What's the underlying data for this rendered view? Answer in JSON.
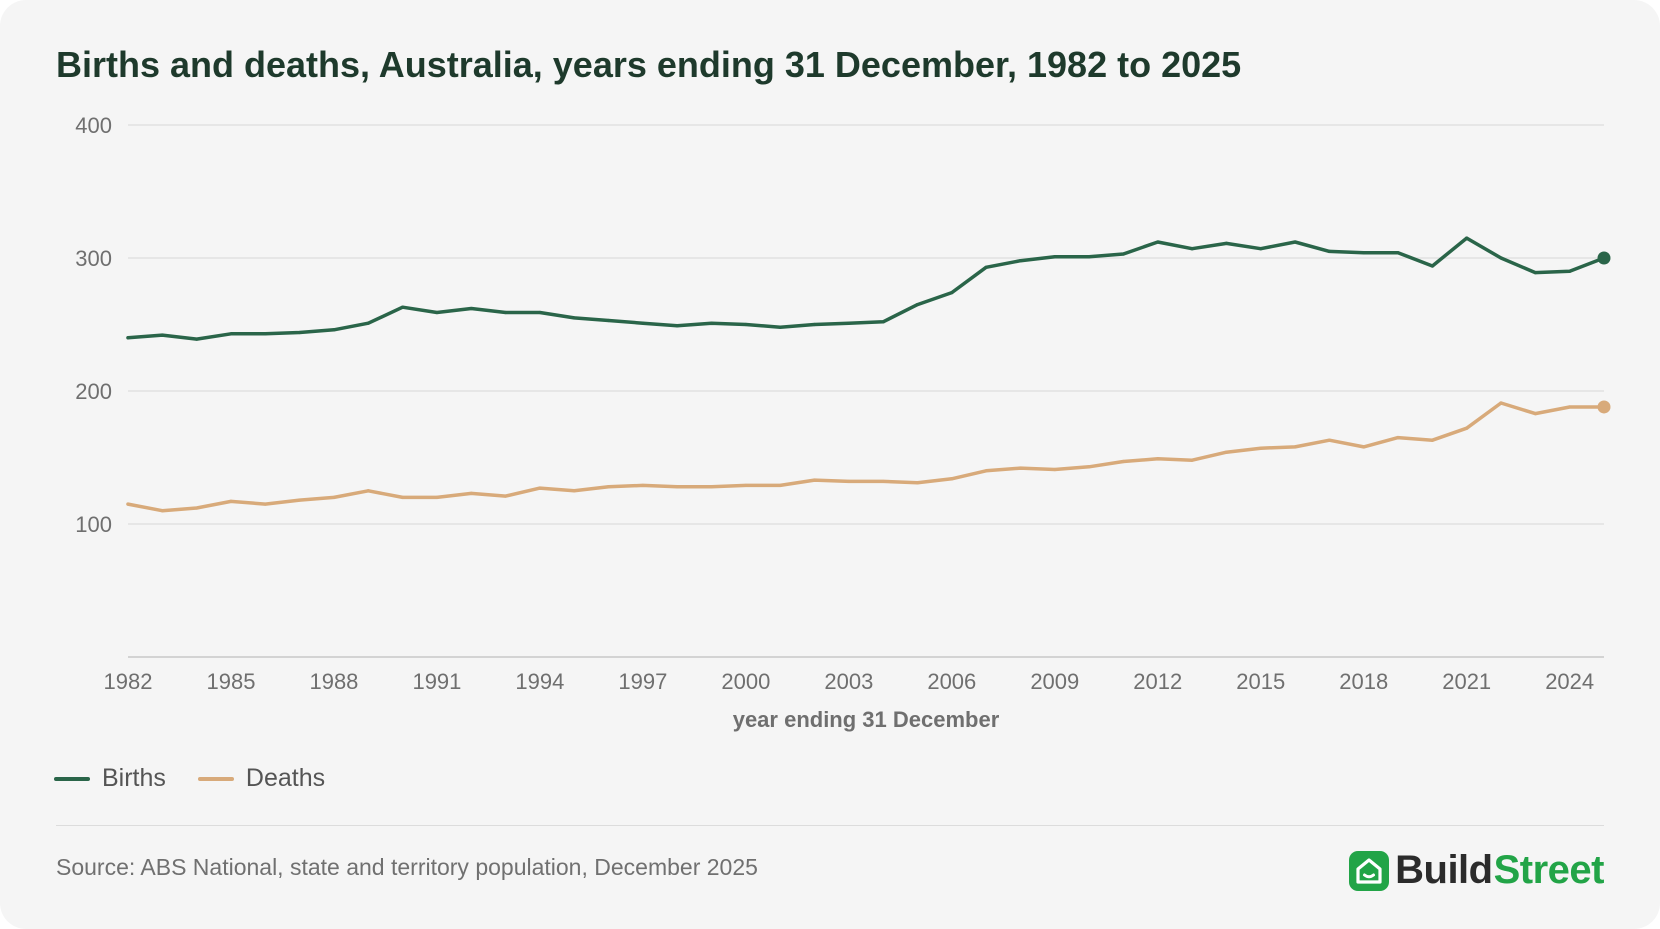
{
  "title": "Births and deaths, Australia, years ending 31 December, 1982 to 2025",
  "legend": {
    "births_label": "Births",
    "deaths_label": "Deaths"
  },
  "source": "Source: ABS National, state and territory population, December 2025",
  "brand": {
    "part1": "Build",
    "part2": "Street",
    "icon": "house-icon",
    "color": "#22a447"
  },
  "colors": {
    "births": "#2a6549",
    "deaths": "#d8aa7a",
    "grid": "#e2e2e2",
    "axis": "#c8c8c8"
  },
  "chart_data": {
    "type": "line",
    "title": "Births and deaths, Australia, years ending 31 December, 1982 to 2025",
    "xlabel": "year ending 31 December",
    "ylabel": "",
    "ylim": [
      0,
      400
    ],
    "xlim": [
      1982,
      2025
    ],
    "yticks": [
      100,
      200,
      300,
      400
    ],
    "xticks": [
      1982,
      1985,
      1988,
      1991,
      1994,
      1997,
      2000,
      2003,
      2006,
      2009,
      2012,
      2015,
      2018,
      2021,
      2024
    ],
    "grid": true,
    "legend_position": "bottom-left",
    "x": [
      1982,
      1983,
      1984,
      1985,
      1986,
      1987,
      1988,
      1989,
      1990,
      1991,
      1992,
      1993,
      1994,
      1995,
      1996,
      1997,
      1998,
      1999,
      2000,
      2001,
      2002,
      2003,
      2004,
      2005,
      2006,
      2007,
      2008,
      2009,
      2010,
      2011,
      2012,
      2013,
      2014,
      2015,
      2016,
      2017,
      2018,
      2019,
      2020,
      2021,
      2022,
      2023,
      2024,
      2025
    ],
    "series": [
      {
        "name": "Births",
        "color": "#2a6549",
        "values": [
          240,
          242,
          239,
          243,
          243,
          244,
          246,
          251,
          263,
          259,
          262,
          259,
          259,
          255,
          253,
          251,
          249,
          251,
          250,
          248,
          250,
          251,
          252,
          265,
          274,
          293,
          298,
          301,
          301,
          303,
          312,
          307,
          311,
          307,
          312,
          305,
          304,
          304,
          294,
          315,
          300,
          289,
          290,
          300
        ]
      },
      {
        "name": "Deaths",
        "color": "#d8aa7a",
        "values": [
          115,
          110,
          112,
          117,
          115,
          118,
          120,
          125,
          120,
          120,
          123,
          121,
          127,
          125,
          128,
          129,
          128,
          128,
          129,
          129,
          133,
          132,
          132,
          131,
          134,
          140,
          142,
          141,
          143,
          147,
          149,
          148,
          154,
          157,
          158,
          163,
          158,
          165,
          163,
          172,
          191,
          183,
          188,
          188
        ]
      }
    ]
  }
}
